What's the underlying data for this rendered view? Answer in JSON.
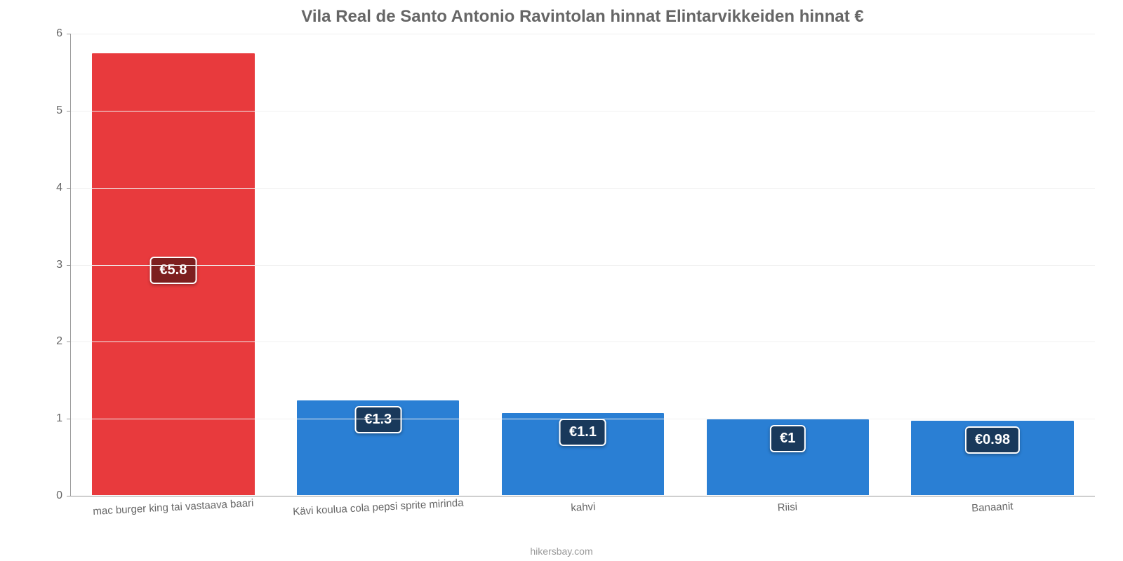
{
  "chart": {
    "type": "bar",
    "title": "Vila Real de Santo Antonio Ravintolan hinnat Elintarvikkeiden hinnat €",
    "title_fontsize": 24,
    "title_color": "#666666",
    "attribution": "hikersbay.com",
    "attribution_color": "#999999",
    "categories": [
      "mac burger king tai vastaava baari",
      "Kävi koulua cola pepsi sprite mirinda",
      "kahvi",
      "Riisi",
      "Banaanit"
    ],
    "values": [
      5.75,
      1.25,
      1.08,
      1.0,
      0.98
    ],
    "display_labels": [
      "€5.8",
      "€1.3",
      "€1.1",
      "€1",
      "€0.98"
    ],
    "bar_colors": [
      "#e83a3d",
      "#2a7fd4",
      "#2a7fd4",
      "#2a7fd4",
      "#2a7fd4"
    ],
    "bar_borders": [
      "#ffffff",
      "#ffffff",
      "#ffffff",
      "#ffffff",
      "#ffffff"
    ],
    "label_bg_colors": [
      "#7d1f1f",
      "#19395b",
      "#19395b",
      "#19395b",
      "#19395b"
    ],
    "label_fontsize": 20,
    "ylim": [
      0,
      6
    ],
    "ytick_step": 1,
    "yticks": [
      "0",
      "1",
      "2",
      "3",
      "4",
      "5",
      "6"
    ],
    "axis_color": "#9a9a9a",
    "grid_color": "#f0f0f0",
    "tick_color": "#666666",
    "tick_fontsize": 16,
    "xlabel_fontsize": 15,
    "xlabel_rotation": -3,
    "background_color": "#ffffff",
    "bar_width_pct": 80
  }
}
